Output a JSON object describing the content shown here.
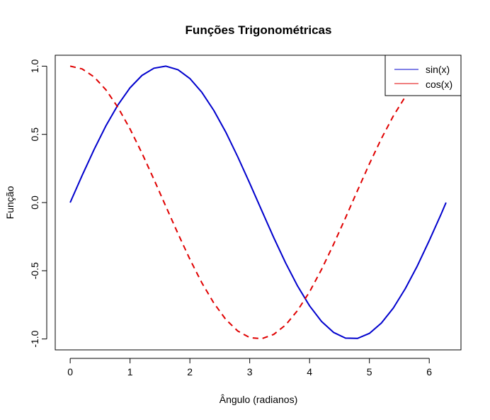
{
  "chart_data": {
    "type": "line",
    "title": "Funções Trigonométricas",
    "xlabel": "Ângulo (radianos)",
    "ylabel": "Função",
    "xlim": [
      -0.25,
      6.53
    ],
    "ylim": [
      -1.08,
      1.08
    ],
    "x_ticks": [
      0,
      1,
      2,
      3,
      4,
      5,
      6
    ],
    "y_ticks": [
      -1.0,
      -0.5,
      0.0,
      0.5,
      1.0
    ],
    "x_tick_labels": [
      "0",
      "1",
      "2",
      "3",
      "4",
      "5",
      "6"
    ],
    "y_tick_labels": [
      "-1.0",
      "-0.5",
      "0.0",
      "0.5",
      "1.0"
    ],
    "x": [
      0,
      0.2,
      0.4,
      0.6,
      0.8,
      1.0,
      1.2,
      1.4,
      1.6,
      1.8,
      2.0,
      2.2,
      2.4,
      2.6,
      2.8,
      3.0,
      3.2,
      3.4,
      3.6,
      3.8,
      4.0,
      4.2,
      4.4,
      4.6,
      4.8,
      5.0,
      5.2,
      5.4,
      5.6,
      5.8,
      6.0,
      6.2,
      6.28
    ],
    "series": [
      {
        "name": "sin(x)",
        "color": "#0000CD",
        "dash": "solid",
        "values": [
          0.0,
          0.199,
          0.389,
          0.565,
          0.717,
          0.841,
          0.932,
          0.985,
          1.0,
          0.974,
          0.909,
          0.808,
          0.675,
          0.516,
          0.335,
          0.141,
          -0.058,
          -0.256,
          -0.443,
          -0.612,
          -0.757,
          -0.872,
          -0.952,
          -0.994,
          -0.996,
          -0.959,
          -0.883,
          -0.773,
          -0.631,
          -0.465,
          -0.279,
          -0.083,
          0.0
        ]
      },
      {
        "name": "cos(x)",
        "color": "#E00000",
        "dash": "dashed",
        "values": [
          1.0,
          0.98,
          0.921,
          0.825,
          0.697,
          0.54,
          0.362,
          0.17,
          -0.029,
          -0.227,
          -0.416,
          -0.589,
          -0.737,
          -0.857,
          -0.942,
          -0.99,
          -0.998,
          -0.967,
          -0.897,
          -0.791,
          -0.654,
          -0.49,
          -0.307,
          -0.112,
          0.087,
          0.284,
          0.469,
          0.635,
          0.776,
          0.886,
          0.96,
          0.997,
          1.0
        ]
      }
    ],
    "legend": {
      "position": "top-right",
      "entries": [
        "sin(x)",
        "cos(x)"
      ]
    }
  }
}
